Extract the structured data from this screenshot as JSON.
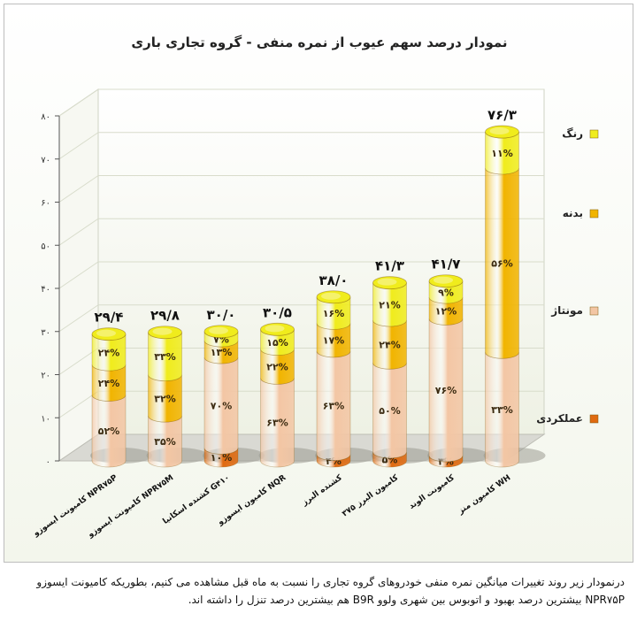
{
  "chart_data": {
    "type": "bar",
    "stacked": true,
    "title": "نمودار درصد سهم عیوب از نمره منفی - گروه تجاری باری",
    "xlabel": "",
    "ylabel": "",
    "ylim": [
      0,
      80
    ],
    "yticks": [
      "۰",
      "۱۰",
      "۲۰",
      "۳۰",
      "۴۰",
      "۵۰",
      "۶۰",
      "۷۰",
      "۸۰"
    ],
    "legend_position": "right",
    "categories": [
      "کامیونت ایسوزو NPR۷۵P",
      "کامیونت ایسوزو NPR۷۵M",
      "کشنده اسکانیا G۴۱۰",
      "کامیون ایسوزو NQR",
      "کشنده البرز",
      "کامیون البرز ۳۷۵",
      "کامیونت الوند",
      "کامیون منز WH"
    ],
    "totals": [
      29.4,
      29.8,
      30.0,
      30.5,
      38.0,
      41.3,
      41.7,
      76.3
    ],
    "total_labels": [
      "۲۹/۴",
      "۲۹/۸",
      "۳۰/۰",
      "۳۰/۵",
      "۳۸/۰",
      "۴۱/۳",
      "۴۱/۷",
      "۷۶/۳"
    ],
    "series": [
      {
        "name": "عملکردی",
        "color": "#e06a10",
        "percent": [
          0,
          0,
          10,
          0,
          4,
          5,
          3,
          0
        ],
        "labels": [
          "",
          "",
          "۱۰%",
          "",
          "۴%",
          "۵%",
          "۳%",
          ""
        ]
      },
      {
        "name": "مونتاژ",
        "color": "#f3c6a4",
        "percent": [
          52,
          35,
          70,
          63,
          63,
          50,
          76,
          33
        ],
        "labels": [
          "۵۲%",
          "۳۵%",
          "۷۰%",
          "۶۳%",
          "۶۳%",
          "۵۰%",
          "۷۶%",
          "۳۳%"
        ]
      },
      {
        "name": "بدنه",
        "color": "#f1b400",
        "percent": [
          24,
          32,
          13,
          22,
          17,
          24,
          12,
          56
        ],
        "labels": [
          "۲۴%",
          "۳۲%",
          "۱۳%",
          "۲۲%",
          "۱۷%",
          "۲۴%",
          "۱۲%",
          "۵۶%"
        ]
      },
      {
        "name": "رنگ",
        "color": "#f0ec1c",
        "percent": [
          24,
          33,
          7,
          15,
          16,
          21,
          9,
          11
        ],
        "labels": [
          "۲۴%",
          "۳۳%",
          "۷%",
          "۱۵%",
          "۱۶%",
          "۲۱%",
          "۹%",
          "۱۱%"
        ]
      }
    ]
  },
  "caption": {
    "line1": "درنمودار زیر روند تغییرات میانگین نمره منفی خودروهای گروه تجاری را نسبت به ماه قبل مشاهده می کنیم، بطوریکه کامیونت ایسوزو",
    "line2": "NPR۷۵P بیشترین درصد بهبود و اتوبوس بین شهری ولوو B9R هم بیشترین درصد تنزل را داشته اند."
  }
}
